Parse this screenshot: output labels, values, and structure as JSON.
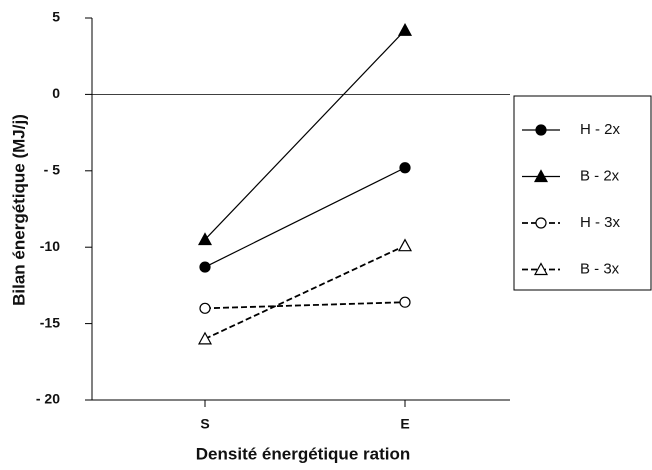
{
  "chart_data": {
    "type": "line",
    "x_label": "Densité énergétique ration",
    "y_label": "Bilan énergétique (MJ/j)",
    "categories": [
      "S",
      "E"
    ],
    "ylim": [
      -20,
      5
    ],
    "yticks": [
      5,
      0,
      {
        "value": -5,
        "label": "- 5"
      },
      -10,
      -15,
      {
        "value": -20,
        "label": "- 20"
      }
    ],
    "zero_line": true,
    "legend": "right",
    "series": [
      {
        "name": "H - 2x",
        "color": "#000000",
        "dash": false,
        "marker": "circle",
        "filled": true,
        "values": [
          -11.3,
          -4.8
        ]
      },
      {
        "name": "B - 2x",
        "color": "#000000",
        "dash": false,
        "marker": "triangle",
        "filled": true,
        "values": [
          -9.5,
          4.2
        ]
      },
      {
        "name": "H - 3x",
        "color": "#000000",
        "dash": true,
        "marker": "circle",
        "filled": false,
        "values": [
          -14,
          -13.6
        ]
      },
      {
        "name": "B - 3x",
        "color": "#000000",
        "dash": true,
        "marker": "triangle",
        "filled": false,
        "values": [
          -16,
          -9.9
        ]
      }
    ]
  }
}
